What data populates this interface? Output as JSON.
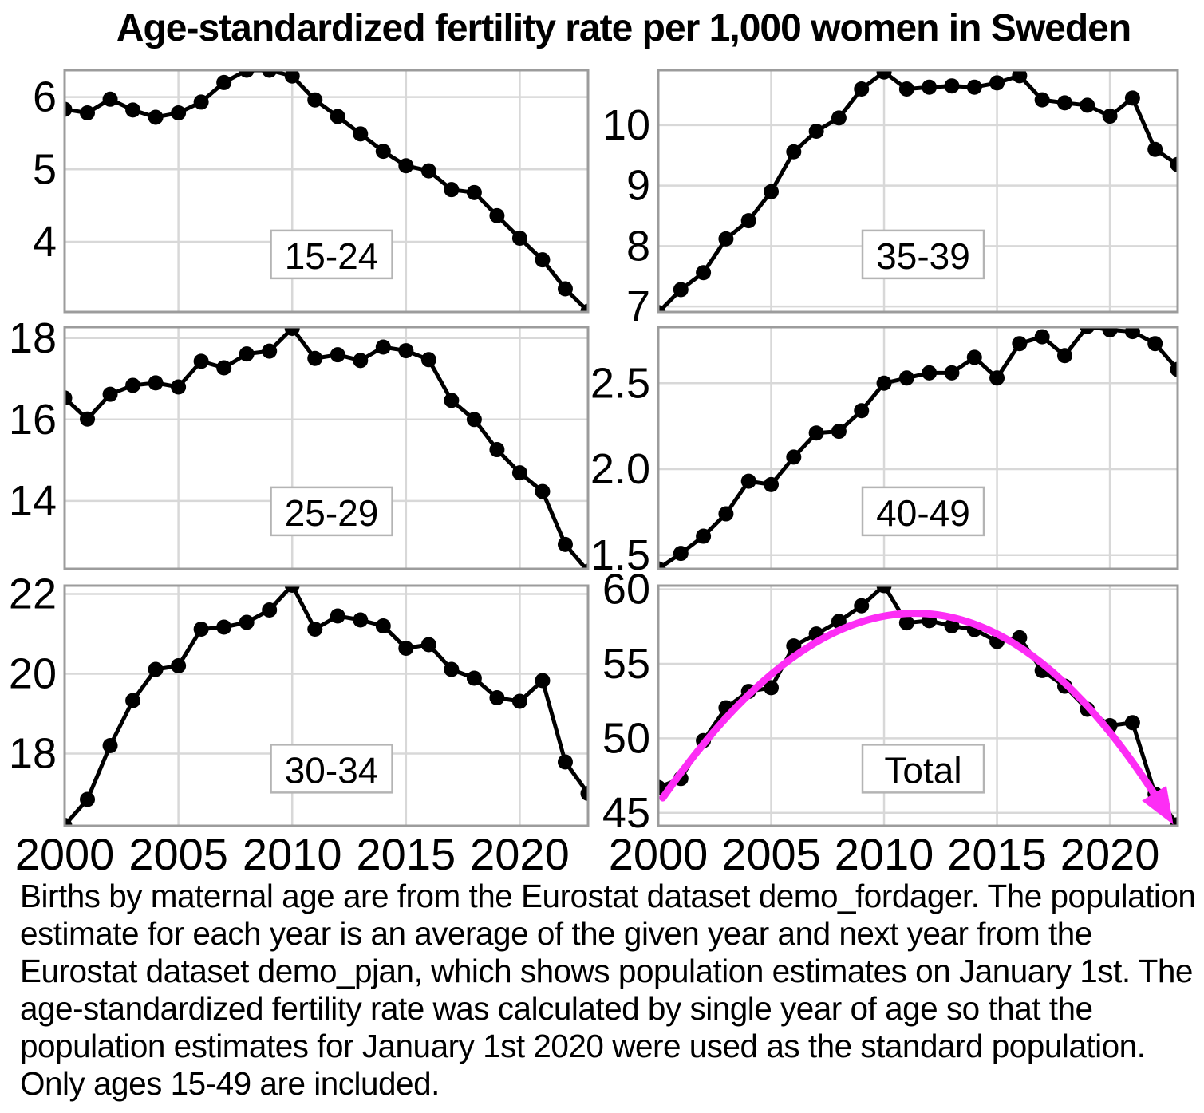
{
  "title": "Age-standardized fertility rate per 1,000 women in Sweden",
  "caption": "Births by maternal age are from the Eurostat dataset demo_fordager. The population estimate for each year is an average of the given year and next year from the Eurostat dataset demo_pjan, which shows population estimates on January 1st. The age-standardized fertility rate was calculated by single year of age so that the population estimates for January 1st 2020 were used as the standard population. Only ages 15-49 are included.",
  "colors": {
    "line": "#000000",
    "grid": "#d8d8d8",
    "panel_border": "#9c9c9c",
    "label_box_border": "#b4b4b4",
    "trend_arrow": "#fd2df5",
    "background": "#ffffff"
  },
  "x_axis": {
    "range": [
      2000,
      2023
    ],
    "grid_years": [
      2005,
      2010,
      2015,
      2020
    ],
    "tick_labels": [
      "2000",
      "2005",
      "2010",
      "2015",
      "2020"
    ],
    "tick_years": [
      2000,
      2005,
      2010,
      2015,
      2020
    ]
  },
  "chart_data": [
    {
      "type": "line",
      "label": "15-24",
      "grid": [
        0,
        0
      ],
      "ylim": [
        3.03,
        6.37
      ],
      "yticks": [
        {
          "v": 4,
          "t": "4"
        },
        {
          "v": 5,
          "t": "5"
        },
        {
          "v": 6,
          "t": "6"
        }
      ],
      "years": [
        2000,
        2001,
        2002,
        2003,
        2004,
        2005,
        2006,
        2007,
        2008,
        2009,
        2010,
        2011,
        2012,
        2013,
        2014,
        2015,
        2016,
        2017,
        2018,
        2019,
        2020,
        2021,
        2022,
        2023
      ],
      "values": [
        5.83,
        5.78,
        5.97,
        5.82,
        5.72,
        5.78,
        5.93,
        6.2,
        6.37,
        6.37,
        6.29,
        5.96,
        5.73,
        5.49,
        5.25,
        5.05,
        4.98,
        4.72,
        4.68,
        4.36,
        4.05,
        3.75,
        3.35,
        3.04
      ]
    },
    {
      "type": "line",
      "label": "35-39",
      "grid": [
        1,
        0
      ],
      "ylim": [
        6.91,
        10.91
      ],
      "yticks": [
        {
          "v": 7,
          "t": "7"
        },
        {
          "v": 8,
          "t": "8"
        },
        {
          "v": 9,
          "t": "9"
        },
        {
          "v": 10,
          "t": "10"
        }
      ],
      "years": [
        2000,
        2001,
        2002,
        2003,
        2004,
        2005,
        2006,
        2007,
        2008,
        2009,
        2010,
        2011,
        2012,
        2013,
        2014,
        2015,
        2016,
        2017,
        2018,
        2019,
        2020,
        2021,
        2022,
        2023
      ],
      "values": [
        6.9,
        7.28,
        7.56,
        8.12,
        8.42,
        8.9,
        9.56,
        9.9,
        10.12,
        10.6,
        10.88,
        10.6,
        10.63,
        10.65,
        10.63,
        10.7,
        10.82,
        10.42,
        10.37,
        10.33,
        10.15,
        10.45,
        9.6,
        9.35
      ]
    },
    {
      "type": "line",
      "label": "25-29",
      "grid": [
        0,
        1
      ],
      "ylim": [
        12.33,
        18.27
      ],
      "yticks": [
        {
          "v": 14,
          "t": "14"
        },
        {
          "v": 16,
          "t": "16"
        },
        {
          "v": 18,
          "t": "18"
        }
      ],
      "years": [
        2000,
        2001,
        2002,
        2003,
        2004,
        2005,
        2006,
        2007,
        2008,
        2009,
        2010,
        2011,
        2012,
        2013,
        2014,
        2015,
        2016,
        2017,
        2018,
        2019,
        2020,
        2021,
        2022,
        2023
      ],
      "values": [
        16.53,
        16.01,
        16.62,
        16.84,
        16.9,
        16.8,
        17.43,
        17.27,
        17.61,
        17.68,
        18.24,
        17.5,
        17.59,
        17.45,
        17.78,
        17.69,
        17.47,
        16.47,
        16.0,
        15.26,
        14.69,
        14.23,
        12.93,
        12.27
      ]
    },
    {
      "type": "line",
      "label": "40-49",
      "grid": [
        1,
        1
      ],
      "ylim": [
        1.42,
        2.826
      ],
      "yticks": [
        {
          "v": 1.5,
          "t": "1.5"
        },
        {
          "v": 2.0,
          "t": "2.0"
        },
        {
          "v": 2.5,
          "t": "2.5"
        }
      ],
      "years": [
        2000,
        2001,
        2002,
        2003,
        2004,
        2005,
        2006,
        2007,
        2008,
        2009,
        2010,
        2011,
        2012,
        2013,
        2014,
        2015,
        2016,
        2017,
        2018,
        2019,
        2020,
        2021,
        2022,
        2023
      ],
      "values": [
        1.42,
        1.51,
        1.61,
        1.74,
        1.93,
        1.91,
        2.07,
        2.21,
        2.22,
        2.34,
        2.5,
        2.53,
        2.56,
        2.56,
        2.65,
        2.53,
        2.73,
        2.77,
        2.66,
        2.83,
        2.81,
        2.8,
        2.73,
        2.58
      ]
    },
    {
      "type": "line",
      "label": "30-34",
      "grid": [
        0,
        2
      ],
      "ylim": [
        16.19,
        22.21
      ],
      "yticks": [
        {
          "v": 18,
          "t": "18"
        },
        {
          "v": 20,
          "t": "20"
        },
        {
          "v": 22,
          "t": "22"
        }
      ],
      "years": [
        2000,
        2001,
        2002,
        2003,
        2004,
        2005,
        2006,
        2007,
        2008,
        2009,
        2010,
        2011,
        2012,
        2013,
        2014,
        2015,
        2016,
        2017,
        2018,
        2019,
        2020,
        2021,
        2022,
        2023
      ],
      "values": [
        16.2,
        16.85,
        18.2,
        19.33,
        20.11,
        20.2,
        21.12,
        21.17,
        21.29,
        21.6,
        22.22,
        21.12,
        21.45,
        21.35,
        21.2,
        20.64,
        20.73,
        20.11,
        19.89,
        19.4,
        19.31,
        19.83,
        17.79,
        17.0
      ]
    },
    {
      "type": "line",
      "label": "Total",
      "grid": [
        1,
        2
      ],
      "ylim": [
        44.13,
        60.25
      ],
      "yticks": [
        {
          "v": 45,
          "t": "45"
        },
        {
          "v": 50,
          "t": "50"
        },
        {
          "v": 55,
          "t": "55"
        },
        {
          "v": 60,
          "t": "60"
        }
      ],
      "years": [
        2000,
        2001,
        2002,
        2003,
        2004,
        2005,
        2006,
        2007,
        2008,
        2009,
        2010,
        2011,
        2012,
        2013,
        2014,
        2015,
        2016,
        2017,
        2018,
        2019,
        2020,
        2021,
        2022,
        2023
      ],
      "values": [
        46.7,
        47.3,
        49.85,
        52.05,
        53.15,
        53.4,
        56.2,
        57.0,
        57.85,
        58.9,
        60.25,
        57.75,
        57.9,
        57.55,
        57.3,
        56.5,
        56.75,
        54.55,
        53.5,
        51.95,
        50.85,
        51.05,
        46.25,
        44.2
      ],
      "trend_curve": {
        "shape": "quadratic-bezier-arrow",
        "start": [
          2000.2,
          46.0
        ],
        "control": [
          2011.85,
          71.35
        ],
        "end": [
          2022.55,
          44.85
        ]
      }
    }
  ]
}
